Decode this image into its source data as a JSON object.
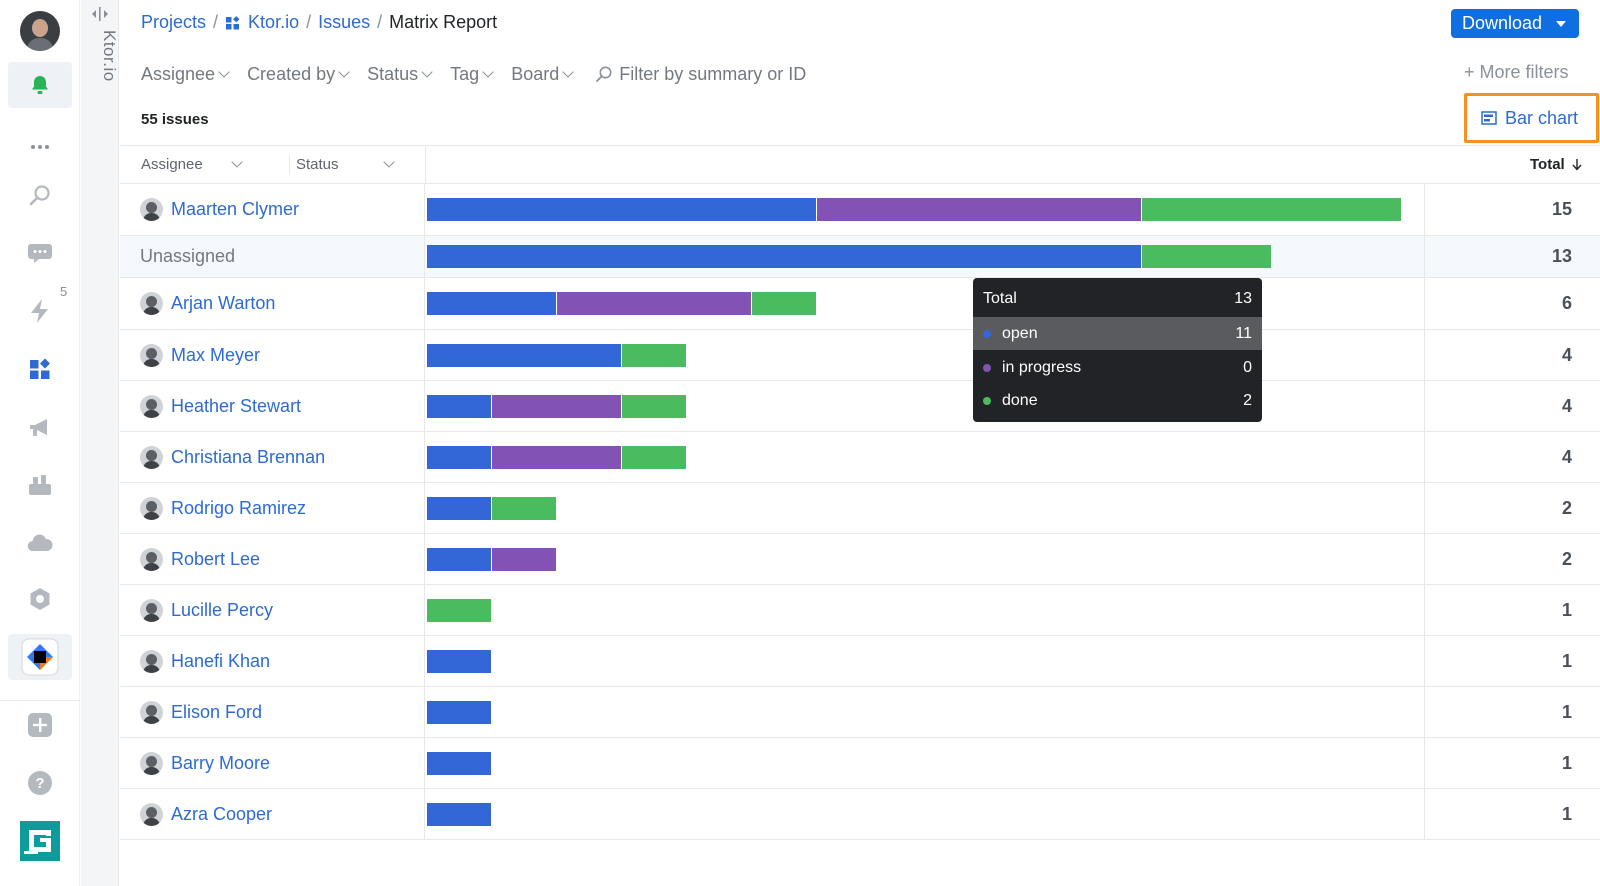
{
  "rail": {
    "notifications_badge": "5"
  },
  "strip": {
    "project_name": "Ktor.io"
  },
  "breadcrumb": {
    "projects": "Projects",
    "project": "Ktor.io",
    "issues": "Issues",
    "current": "Matrix Report",
    "separator": "/"
  },
  "toolbar": {
    "download_label": "Download",
    "more_filters_label": "+ More filters",
    "bar_chart_label": "Bar chart"
  },
  "filters": [
    {
      "label": "Assignee"
    },
    {
      "label": "Created by"
    },
    {
      "label": "Status"
    },
    {
      "label": "Tag"
    },
    {
      "label": "Board"
    }
  ],
  "search": {
    "placeholder": "Filter by summary or ID"
  },
  "issues_count": "55 issues",
  "table": {
    "header": {
      "assignee": "Assignee",
      "status": "Status",
      "total": "Total"
    }
  },
  "colors": {
    "open": "#3366d6",
    "in_progress": "#8253b4",
    "done": "#4bbb5f",
    "accent": "#0f6fe0",
    "highlight": "#f7901e"
  },
  "chart_data": {
    "type": "bar",
    "orientation": "horizontal",
    "stacked": true,
    "categories": [
      "Maarten Clymer",
      "Unassigned",
      "Arjan Warton",
      "Max Meyer",
      "Heather Stewart",
      "Christiana Brennan",
      "Rodrigo Ramirez",
      "Robert Lee",
      "Lucille Percy",
      "Hanefi Khan",
      "Elison Ford",
      "Barry Moore",
      "Azra Cooper"
    ],
    "series": [
      {
        "name": "open",
        "values": [
          6,
          11,
          2,
          3,
          1,
          1,
          1,
          1,
          0,
          1,
          1,
          1,
          1
        ]
      },
      {
        "name": "in progress",
        "values": [
          5,
          0,
          3,
          0,
          2,
          2,
          0,
          1,
          0,
          0,
          0,
          0,
          0
        ]
      },
      {
        "name": "done",
        "values": [
          4,
          2,
          1,
          1,
          1,
          1,
          1,
          0,
          1,
          0,
          0,
          0,
          0
        ]
      }
    ],
    "totals": [
      "15",
      "13",
      "6",
      "4",
      "4",
      "4",
      "2",
      "2",
      "1",
      "1",
      "1",
      "1",
      "1"
    ]
  },
  "tooltip": {
    "total_label": "Total",
    "total_value": "13",
    "items": [
      {
        "label": "open",
        "value": "11",
        "color": "#3366d6"
      },
      {
        "label": "in progress",
        "value": "0",
        "color": "#8253b4"
      },
      {
        "label": "done",
        "value": "2",
        "color": "#4bbb5f"
      }
    ]
  }
}
